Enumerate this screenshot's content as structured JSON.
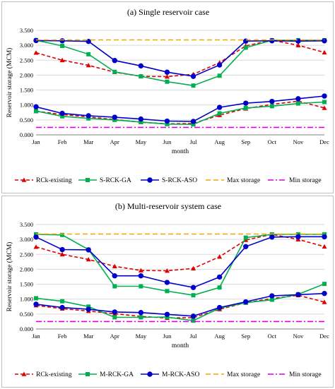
{
  "chart_data": [
    {
      "type": "line",
      "title": "(a) Single reservoir case",
      "xlabel": "month",
      "ylabel": "Reservoir storage (MCM)",
      "ylim": [
        0,
        3500
      ],
      "yticks": [
        "0.000",
        "0.500",
        "1.000",
        "1.500",
        "2.000",
        "2.500",
        "3.000",
        "3.500"
      ],
      "categories": [
        "Jan",
        "Feb",
        "Mar",
        "Apr",
        "May",
        "Jun",
        "Jul",
        "Aug",
        "Sep",
        "Oct",
        "Nov",
        "Dec"
      ],
      "grid": true,
      "legend_position": "bottom",
      "series": [
        {
          "name": "RCk-existing",
          "group": "upper",
          "color": "#e00000",
          "dash": "5,3",
          "marker": "triangle",
          "values": [
            2750,
            2500,
            2330,
            2100,
            1960,
            1950,
            2030,
            2420,
            2980,
            3170,
            3000,
            2760
          ]
        },
        {
          "name": "RCk-existing",
          "group": "lower",
          "color": "#e00000",
          "dash": "5,3",
          "marker": "triangle",
          "legend": false,
          "values": [
            790,
            680,
            600,
            510,
            420,
            370,
            380,
            660,
            880,
            1020,
            1130,
            900
          ]
        },
        {
          "name": "S-RCK-GA",
          "group": "upper",
          "color": "#00b050",
          "dash": "",
          "marker": "square",
          "values": [
            3170,
            2980,
            2700,
            2110,
            1960,
            1780,
            1650,
            1980,
            2920,
            3170,
            3170,
            3170
          ]
        },
        {
          "name": "S-RCK-GA",
          "group": "lower",
          "color": "#00b050",
          "dash": "",
          "marker": "square",
          "legend": false,
          "values": [
            800,
            620,
            550,
            500,
            430,
            360,
            350,
            720,
            900,
            960,
            1050,
            1100
          ]
        },
        {
          "name": "S-RCK-ASO",
          "group": "upper",
          "color": "#0000cc",
          "dash": "",
          "marker": "circle",
          "values": [
            3160,
            3150,
            3130,
            2490,
            2310,
            2100,
            1960,
            2340,
            3140,
            3150,
            3140,
            3150
          ]
        },
        {
          "name": "S-RCK-ASO",
          "group": "lower",
          "color": "#0000cc",
          "dash": "",
          "marker": "circle",
          "legend": false,
          "values": [
            940,
            720,
            640,
            590,
            530,
            460,
            450,
            920,
            1060,
            1120,
            1210,
            1300
          ]
        },
        {
          "name": "Max storage",
          "color": "#f0a800",
          "dash": "7,4",
          "marker": "none",
          "values": [
            3180,
            3180,
            3180,
            3180,
            3180,
            3180,
            3180,
            3180,
            3180,
            3180,
            3180,
            3180
          ]
        },
        {
          "name": "Min storage",
          "color": "#e000e0",
          "dash": "8,3,2,3",
          "marker": "none",
          "values": [
            250,
            250,
            250,
            250,
            250,
            250,
            250,
            250,
            250,
            250,
            250,
            250
          ]
        }
      ]
    },
    {
      "type": "line",
      "title": "(b) Multi-reservoir system case",
      "xlabel": "month",
      "ylabel": "Reservoir storage (MCM)",
      "ylim": [
        0,
        3500
      ],
      "yticks": [
        "0.000",
        "0.500",
        "1.000",
        "1.500",
        "2.000",
        "2.500",
        "3.000",
        "3.500"
      ],
      "categories": [
        "Jan",
        "Feb",
        "Mar",
        "Apr",
        "May",
        "Jun",
        "Jul",
        "Aug",
        "Sep",
        "Oct",
        "Nov",
        "Dec"
      ],
      "grid": true,
      "legend_position": "bottom",
      "series": [
        {
          "name": "RCk-existing",
          "group": "upper",
          "color": "#e00000",
          "dash": "5,3",
          "marker": "triangle",
          "values": [
            2750,
            2500,
            2330,
            2100,
            1960,
            1950,
            2030,
            2420,
            2980,
            3170,
            3000,
            2760
          ]
        },
        {
          "name": "RCk-existing",
          "group": "lower",
          "color": "#e00000",
          "dash": "5,3",
          "marker": "triangle",
          "legend": false,
          "values": [
            790,
            680,
            600,
            510,
            420,
            370,
            380,
            660,
            880,
            1020,
            1130,
            900
          ]
        },
        {
          "name": "M-RCK-GA",
          "group": "upper",
          "color": "#00b050",
          "dash": "",
          "marker": "square",
          "values": [
            3170,
            3150,
            2660,
            1430,
            1430,
            1270,
            1130,
            1390,
            3060,
            3170,
            3170,
            3170
          ]
        },
        {
          "name": "M-RCK-GA",
          "group": "lower",
          "color": "#00b050",
          "dash": "",
          "marker": "square",
          "legend": false,
          "values": [
            1030,
            930,
            750,
            390,
            390,
            400,
            280,
            700,
            880,
            980,
            1160,
            1510
          ]
        },
        {
          "name": "M-RCK-ASO",
          "group": "upper",
          "color": "#0000cc",
          "dash": "",
          "marker": "circle",
          "values": [
            3080,
            2660,
            2650,
            1780,
            1780,
            1560,
            1390,
            1740,
            2760,
            3080,
            3090,
            3090
          ]
        },
        {
          "name": "M-RCK-ASO",
          "group": "lower",
          "color": "#0000cc",
          "dash": "",
          "marker": "circle",
          "legend": false,
          "values": [
            830,
            720,
            660,
            570,
            550,
            490,
            430,
            720,
            910,
            1110,
            1150,
            1190
          ]
        },
        {
          "name": "Max storage",
          "color": "#f0a800",
          "dash": "7,4",
          "marker": "none",
          "values": [
            3180,
            3180,
            3180,
            3180,
            3180,
            3180,
            3180,
            3180,
            3180,
            3180,
            3180,
            3180
          ]
        },
        {
          "name": "Min storage",
          "color": "#e000e0",
          "dash": "8,3,2,3",
          "marker": "none",
          "values": [
            250,
            250,
            250,
            250,
            250,
            250,
            250,
            250,
            250,
            250,
            250,
            250
          ]
        }
      ]
    }
  ]
}
